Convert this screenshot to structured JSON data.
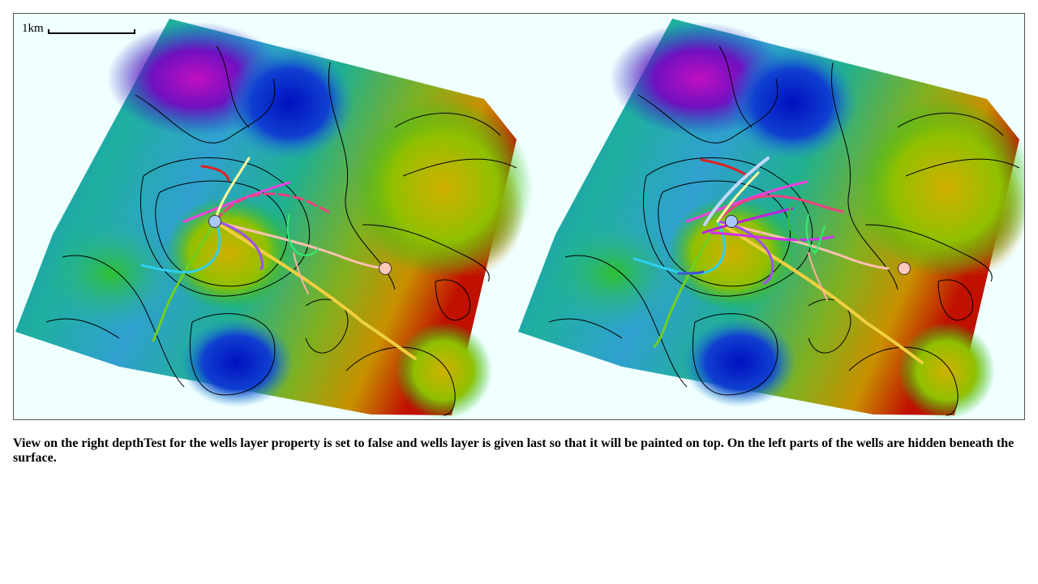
{
  "scale": {
    "label": "1km"
  },
  "caption": "View on the right depthTest for the wells layer property is set to false and wells layer is given last so that it will be painted on top. On the left parts of the wells are hidden beneath the surface.",
  "colors": {
    "background": "#f0ffff",
    "depth_shallow": "#7a00c0",
    "depth_mid": "#00b060",
    "depth_deep": "#c00000",
    "contour": "#000000",
    "well_head_blue": "#a0c8ff",
    "well_head_pink": "#ffc8b4"
  },
  "panels": [
    {
      "name": "left-map",
      "wells_depth_test": true
    },
    {
      "name": "right-map",
      "wells_depth_test": false
    }
  ]
}
